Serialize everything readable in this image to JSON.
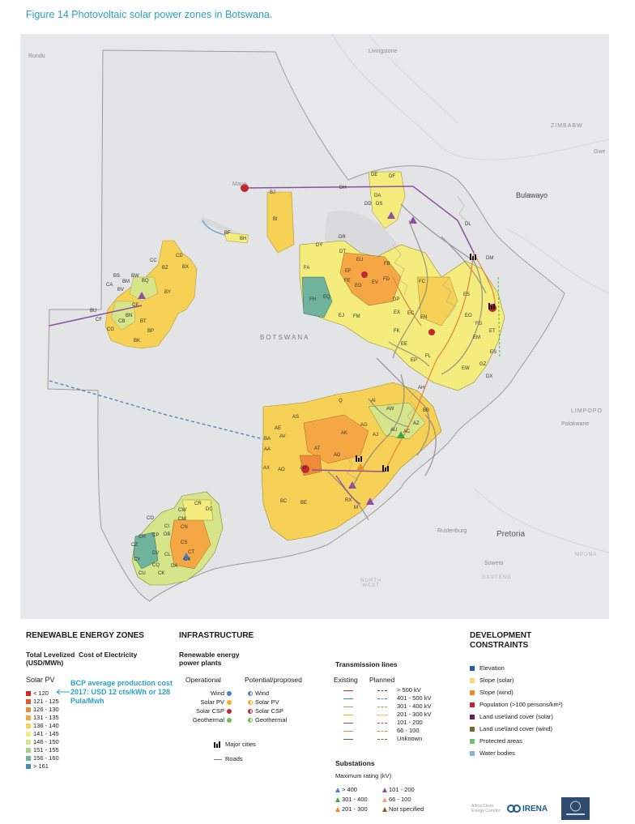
{
  "figure": {
    "title": "Figure 14 Photovoltaic solar power zones in Botswana."
  },
  "colors": {
    "accent": "#2aa3c4",
    "lcoe": [
      "#d7261e",
      "#e8582a",
      "#ef8a3a",
      "#f5a743",
      "#f7d155",
      "#f4ec7c",
      "#d7e58a",
      "#a9cf8e",
      "#6fb39c",
      "#3f8fad"
    ],
    "operational": {
      "wind": "#4a7fc1",
      "solar_pv": "#f2b01e",
      "solar_csp": "#c0262d",
      "geothermal": "#6fbf4a"
    },
    "transmission": [
      "#d7261e",
      "#4a7fc1",
      "#6fbf4a",
      "#f2b01e",
      "#8e4fa3",
      "#e8863a",
      "#8b5a2b"
    ],
    "substation": [
      "#4a7fc1",
      "#3fa34d",
      "#f08a24",
      "#8e4fa3",
      "#f6a57a",
      "#8b5a2b"
    ],
    "constraints": [
      "#2d5aa6",
      "#f7d776",
      "#f08a24",
      "#c6222a",
      "#6a1b5c",
      "#6e6a2a",
      "#6fbf72",
      "#86b3d6"
    ]
  },
  "map": {
    "country_label": "BOTSWANA",
    "places": {
      "rundu": "Rundu",
      "livingstone": "Livingstone",
      "zimbabwe": "ZIMBABW",
      "gweru": "Gwe",
      "bulawayo": "Bulawayo",
      "maun": "Maun",
      "limpopo": "LIMPOPO",
      "polokwane": "Polokwane",
      "rustenburg": "Rustenburg",
      "pretoria": "Pretoria",
      "soweto": "Soweto",
      "gauteng": "GAUTENG",
      "mpuma": "MPUMA",
      "north_west": "NORTH\nWEST"
    },
    "zone_codes": {
      "north_small": [
        "BJ",
        "BI",
        "BF",
        "BH"
      ],
      "west_cluster": [
        "CC",
        "CD",
        "BZ",
        "BX",
        "BS",
        "BW",
        "BM",
        "BQ",
        "CA",
        "BV",
        "BY",
        "CE",
        "BN",
        "BU",
        "CF",
        "CB",
        "BT",
        "BP",
        "CG",
        "BK"
      ],
      "northeast": [
        "DH",
        "DE",
        "DF",
        "DA",
        "DD",
        "DS",
        "DR",
        "DL",
        "DM",
        "DY",
        "DT",
        "FA",
        "EU",
        "EF",
        "FB",
        "FE",
        "EV",
        "FD",
        "EG",
        "FC",
        "FH",
        "EQ",
        "DP",
        "EJ",
        "FM",
        "EX",
        "EC",
        "EN",
        "FK",
        "ES",
        "EO",
        "FG",
        "ET",
        "EM",
        "ES",
        "EE",
        "EP",
        "FL",
        "DX",
        "GZ",
        "EW"
      ],
      "southeast": [
        "AS",
        "AE",
        "AV",
        "BA",
        "AA",
        "AX",
        "AO",
        "AP",
        "AK",
        "AD",
        "AT",
        "AH",
        "BB",
        "AW",
        "AC",
        "AZ",
        "AU",
        "AJ",
        "AG",
        "BC",
        "BE",
        "M",
        "RX",
        "Q",
        "AI"
      ],
      "southwest": [
        "CR",
        "CW",
        "DC",
        "CO",
        "CM",
        "CI",
        "CN",
        "CH",
        "CP",
        "DB",
        "CZ",
        "CS",
        "DV",
        "CL",
        "CT",
        "CY",
        "CQ",
        "CX",
        "CU",
        "CK",
        "DA"
      ]
    }
  },
  "legend": {
    "zones": {
      "heading": "RENEWABLE ENERGY ZONES",
      "subheading": "Total Levelized  Cost of Electricity\n(USD/MWh)",
      "solar_pv_label": "Solar PV",
      "ranges": [
        "< 120",
        "121 - 125",
        "126 - 130",
        "131 - 135",
        "136 - 140",
        "141 - 145",
        "146 - 150",
        "151 - 155",
        "156 - 160",
        "> 161"
      ],
      "callout": "BCP average production cost 2017: USD 12 cts/kWh or 128 Pula/Mwh"
    },
    "infrastructure": {
      "heading": "INFRASTRUCTURE",
      "plants_heading": "Renewable energy\npower plants",
      "operational_label": "Operational",
      "potential_label": "Potential/proposed",
      "plant_types": [
        "Wind",
        "Solar PV",
        "Solar CSP",
        "Geothermal"
      ],
      "major_cities": "Major cities",
      "roads": "Roads"
    },
    "transmission": {
      "heading": "Transmission lines",
      "existing_label": "Existing",
      "planned_label": "Planned",
      "ranges": [
        "> 500 kV",
        "401 - 500 kV",
        "301 - 400 kV",
        "201 - 300 kV",
        "101 - 200",
        "66 - 100",
        "Unknown"
      ]
    },
    "substations": {
      "heading": "Substations",
      "subheading": "Maximum rating (kV)",
      "items": [
        "> 400",
        "101 - 200",
        "301 - 400",
        "66 - 100",
        "201 - 300",
        "Not specified"
      ]
    },
    "constraints": {
      "heading": "DEVELOPMENT\nCONSTRAINTS",
      "items": [
        "Elevation",
        "Slope (solar)",
        "Slope (wind)",
        "Population (>100 persons/km²)",
        "Land use\\land cover (solar)",
        "Land use\\land cover (wind)",
        "Protected areas",
        "Water bodies"
      ]
    },
    "logos": {
      "acec": "Africa Clean\nEnergy Corridor",
      "irena": "IRENA"
    }
  }
}
